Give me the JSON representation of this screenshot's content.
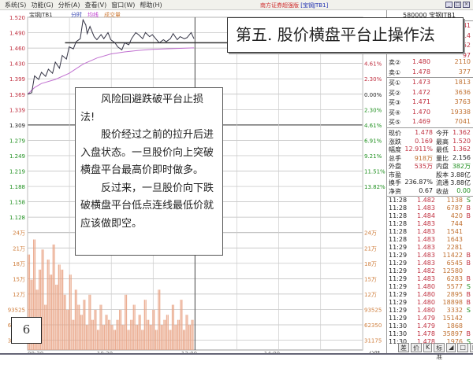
{
  "menu": [
    "系统(S)",
    "功能(G)",
    "分析(A)",
    "查看(V)",
    "窗口(W)",
    "帮助(H)"
  ],
  "app_title": "南方证券超强版",
  "app_title_stock": "[宝钢JTB1]",
  "chart_legend": {
    "name": "宝钢JTB1",
    "mode": "分时",
    "avg": "均线",
    "vol": "成交量"
  },
  "colors": {
    "up": "#c03040",
    "down": "#209020",
    "price_line": "#333344",
    "avg_line": "#c070d0",
    "volume": "#e8a080"
  },
  "price_ticks": [
    "1.520",
    "1.490",
    "1.460",
    "1.430",
    "1.399",
    "1.369",
    "1.339",
    "1.309",
    "1.279",
    "1.249",
    "1.219",
    "1.188",
    "1.158",
    "1.128"
  ],
  "pct_ticks": [
    "9.21%",
    "6.91%",
    "4.61%",
    "2.30%",
    "0.00%",
    "2.30%",
    "4.61%",
    "6.91%",
    "9.21%",
    "11.51%",
    "13.82%"
  ],
  "vol_ticks": [
    "24万",
    "21万",
    "18万",
    "15万",
    "12万",
    "93525",
    "62350",
    "31175"
  ],
  "time_ticks": [
    "09:30",
    "10:30",
    "13:00",
    "14:00"
  ],
  "axis_mode": "分时",
  "price_series": {
    "t": [
      0,
      3,
      5,
      8,
      10,
      13,
      15,
      18,
      20,
      23,
      25,
      28,
      30,
      33,
      35,
      38,
      40,
      42,
      43,
      45,
      48,
      50,
      53,
      55,
      58,
      60,
      63,
      65,
      68,
      70,
      73,
      75,
      78,
      80,
      83,
      85,
      88,
      90,
      93,
      95,
      98,
      100,
      103,
      105,
      108,
      110,
      113,
      115,
      118,
      120
    ],
    "p": [
      1.369,
      1.372,
      1.405,
      1.398,
      1.412,
      1.404,
      1.418,
      1.41,
      1.432,
      1.42,
      1.445,
      1.438,
      1.462,
      1.458,
      1.472,
      1.478,
      1.515,
      1.505,
      1.488,
      1.502,
      1.482,
      1.476,
      1.486,
      1.478,
      1.49,
      1.476,
      1.47,
      1.462,
      1.456,
      1.47,
      1.466,
      1.478,
      1.49,
      1.486,
      1.478,
      1.49,
      1.482,
      1.486,
      1.476,
      1.47,
      1.476,
      1.472,
      1.478,
      1.488,
      1.476,
      1.482,
      1.478,
      1.48,
      1.49,
      1.478
    ]
  },
  "avg_series": {
    "t": [
      0,
      5,
      10,
      20,
      30,
      40,
      50,
      60,
      70,
      80,
      90,
      100,
      110,
      120
    ],
    "p": [
      1.369,
      1.382,
      1.39,
      1.398,
      1.41,
      1.428,
      1.44,
      1.448,
      1.452,
      1.455,
      1.457,
      1.458,
      1.459,
      1.46
    ]
  },
  "platform_price": 1.47,
  "volume_wan": [
    19,
    14,
    22,
    12,
    16,
    20,
    9,
    18,
    15,
    21,
    13,
    17,
    16,
    11,
    8,
    15,
    6,
    12,
    9,
    7,
    10,
    5,
    11,
    6,
    8,
    4,
    9,
    5,
    7,
    6,
    5,
    4,
    6,
    8,
    5,
    11,
    4,
    6,
    9,
    5,
    7,
    4,
    10,
    6,
    5,
    8,
    4,
    12,
    5,
    6,
    7,
    4,
    9,
    5,
    6,
    10,
    4,
    7,
    5,
    6
  ],
  "title_box": "第五. 股价横盘平台止操作法",
  "text_box": [
    "风险回避跌破平台止损法!",
    "股价经过之前的拉升后进入盘状态。一旦股价向上突破横盘平台最高价即时做多。",
    "反过来，一旦股价向下跌破横盘平台低点连线最低价就应该做即空。"
  ],
  "figure_number": "6",
  "panel": {
    "header": "580000 宝钢JTB1",
    "hidden_asks": [
      "41",
      "14",
      "52",
      "97"
    ],
    "asks": [
      {
        "label": "卖②",
        "price": "1.480",
        "vol": "2110"
      },
      {
        "label": "卖①",
        "price": "1.478",
        "vol": "377"
      }
    ],
    "bids": [
      {
        "label": "买①",
        "price": "1.473",
        "vol": "1813"
      },
      {
        "label": "买②",
        "price": "1.472",
        "vol": "3636"
      },
      {
        "label": "买③",
        "price": "1.471",
        "vol": "3763"
      },
      {
        "label": "买④",
        "price": "1.470",
        "vol": "19338"
      },
      {
        "label": "买⑤",
        "price": "1.469",
        "vol": "7041"
      }
    ],
    "stats": [
      [
        "现价",
        "1.478",
        "今开",
        "1.362"
      ],
      [
        "涨跌",
        "0.169",
        "最高",
        "1.520"
      ],
      [
        "幅度",
        "12.911%",
        "最低",
        "1.362"
      ],
      [
        "总手",
        "918万",
        "量比",
        "2.156"
      ],
      [
        "外盘",
        "535万",
        "内盘",
        "382万"
      ],
      [
        "市盈",
        "",
        "股本",
        "3.88亿"
      ],
      [
        "换手",
        "236.87%",
        "流通",
        "3.88亿"
      ],
      [
        "净资",
        "0.67",
        "收益",
        "0.00"
      ]
    ],
    "ticks": [
      [
        "11:28",
        "1.482",
        "1138",
        "S"
      ],
      [
        "11:28",
        "1.483",
        "6787",
        "B"
      ],
      [
        "11:28",
        "1.484",
        "420",
        "B"
      ],
      [
        "11:28",
        "1.483",
        "744",
        ""
      ],
      [
        "11:28",
        "1.483",
        "1541",
        ""
      ],
      [
        "11:28",
        "1.483",
        "1643",
        ""
      ],
      [
        "11:29",
        "1.483",
        "2281",
        ""
      ],
      [
        "11:29",
        "1.483",
        "11422",
        "B"
      ],
      [
        "11:29",
        "1.483",
        "6545",
        "B"
      ],
      [
        "11:29",
        "1.482",
        "12580",
        ""
      ],
      [
        "11:29",
        "1.483",
        "6283",
        "B"
      ],
      [
        "11:29",
        "1.480",
        "5577",
        "S"
      ],
      [
        "11:29",
        "1.480",
        "2895",
        "B"
      ],
      [
        "11:29",
        "1.480",
        "18898",
        "B"
      ],
      [
        "11:29",
        "1.480",
        "3332",
        "S"
      ],
      [
        "11:29",
        "1.479",
        "15142",
        ""
      ],
      [
        "11:30",
        "1.479",
        "1868",
        ""
      ],
      [
        "11:30",
        "1.478",
        "35897",
        "B"
      ],
      [
        "11:30",
        "1.478",
        "1976",
        "S"
      ]
    ]
  },
  "toolbar": [
    "差",
    "价",
    "K",
    "标准",
    "◢",
    "□",
    "▥"
  ]
}
